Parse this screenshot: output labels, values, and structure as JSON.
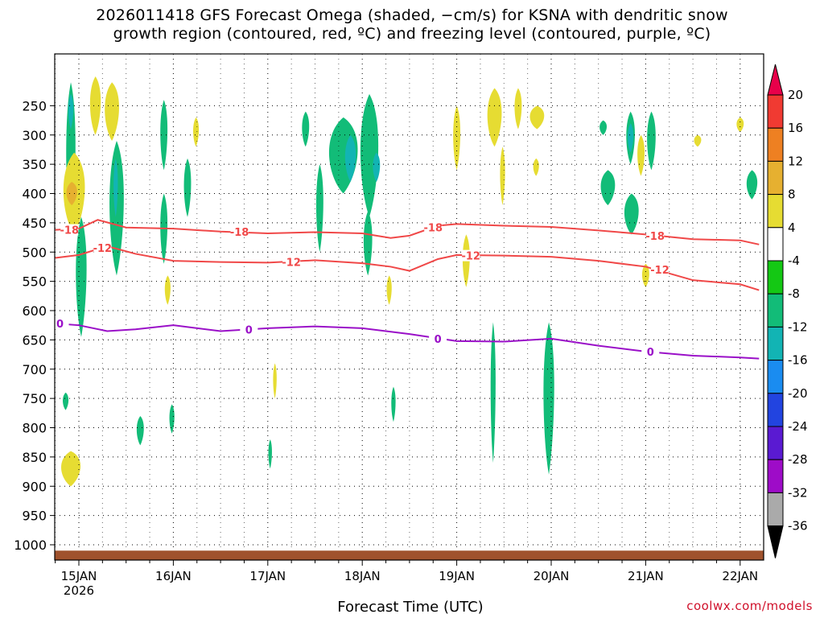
{
  "title": {
    "line1": "2026011418 GFS Forecast Omega (shaded, −cm/s) for KSNA with dendritic snow",
    "line2": "growth region (contoured, red, ºC) and freezing level (contoured, purple, ºC)"
  },
  "credit": "coolwx.com/models",
  "chart_data": {
    "type": "heatmap",
    "xlabel": "Forecast Time (UTC)",
    "x_unit": "days from 2026-01-15 00Z",
    "x_range": [
      -0.25,
      7.2
    ],
    "x_ticks": [
      {
        "x": 0,
        "label": "15JAN",
        "sub": "2026"
      },
      {
        "x": 1,
        "label": "16JAN",
        "sub": ""
      },
      {
        "x": 2,
        "label": "17JAN",
        "sub": ""
      },
      {
        "x": 3,
        "label": "18JAN",
        "sub": ""
      },
      {
        "x": 4,
        "label": "19JAN",
        "sub": ""
      },
      {
        "x": 5,
        "label": "20JAN",
        "sub": ""
      },
      {
        "x": 6,
        "label": "21JAN",
        "sub": ""
      },
      {
        "x": 7,
        "label": "22JAN",
        "sub": ""
      }
    ],
    "y_unit": "hPa",
    "y_range": [
      1010,
      200
    ],
    "y_ticks": [
      250,
      300,
      350,
      400,
      450,
      500,
      550,
      600,
      650,
      700,
      750,
      800,
      850,
      900,
      950,
      1000
    ],
    "surface_pressure": 1010,
    "colorbar": {
      "levels": [
        20,
        16,
        12,
        8,
        4,
        -4,
        -8,
        -12,
        -16,
        -20,
        -24,
        -28,
        -32,
        -36
      ],
      "colors": [
        "#e8004a",
        "#f03a32",
        "#ee8022",
        "#e6b030",
        "#e6dc32",
        "#ffffff",
        "#14c814",
        "#12bc78",
        "#12b4b4",
        "#1a8cf0",
        "#2244e0",
        "#5a1ad2",
        "#9e0cc8",
        "#aaaaaa",
        "#000000"
      ]
    },
    "contours": [
      {
        "label": "-18",
        "color": "#f04848",
        "points": [
          [
            -0.25,
            462
          ],
          [
            0,
            460
          ],
          [
            0.2,
            445
          ],
          [
            0.5,
            458
          ],
          [
            1,
            460
          ],
          [
            1.5,
            465
          ],
          [
            2,
            468
          ],
          [
            2.5,
            466
          ],
          [
            3,
            468
          ],
          [
            3.3,
            476
          ],
          [
            3.5,
            472
          ],
          [
            3.8,
            455
          ],
          [
            4,
            452
          ],
          [
            4.5,
            455
          ],
          [
            5,
            457
          ],
          [
            5.5,
            463
          ],
          [
            6,
            470
          ],
          [
            6.5,
            478
          ],
          [
            7,
            480
          ],
          [
            7.2,
            487
          ]
        ]
      },
      {
        "label": "-12",
        "color": "#f04848",
        "points": [
          [
            -0.25,
            510
          ],
          [
            0,
            505
          ],
          [
            0.3,
            490
          ],
          [
            0.6,
            503
          ],
          [
            1,
            515
          ],
          [
            1.5,
            517
          ],
          [
            2,
            518
          ],
          [
            2.5,
            514
          ],
          [
            3,
            519
          ],
          [
            3.3,
            525
          ],
          [
            3.5,
            532
          ],
          [
            3.8,
            512
          ],
          [
            4,
            505
          ],
          [
            4.5,
            506
          ],
          [
            5,
            508
          ],
          [
            5.5,
            515
          ],
          [
            6,
            525
          ],
          [
            6.5,
            548
          ],
          [
            7,
            555
          ],
          [
            7.2,
            565
          ]
        ]
      },
      {
        "label": "0",
        "color": "#9a10c8",
        "points": [
          [
            -0.25,
            622
          ],
          [
            0,
            625
          ],
          [
            0.3,
            635
          ],
          [
            0.6,
            632
          ],
          [
            1,
            625
          ],
          [
            1.5,
            635
          ],
          [
            2,
            630
          ],
          [
            2.5,
            627
          ],
          [
            3,
            630
          ],
          [
            3.5,
            640
          ],
          [
            4,
            652
          ],
          [
            4.5,
            653
          ],
          [
            5,
            648
          ],
          [
            5.5,
            660
          ],
          [
            6,
            670
          ],
          [
            6.5,
            677
          ],
          [
            7,
            680
          ],
          [
            7.2,
            682
          ]
        ]
      }
    ],
    "contour_labels": [
      {
        "text": "-18",
        "color": "#f04848",
        "x": -0.1,
        "y": 462
      },
      {
        "text": "-18",
        "color": "#f04848",
        "x": 1.7,
        "y": 465
      },
      {
        "text": "-18",
        "color": "#f04848",
        "x": 3.75,
        "y": 458
      },
      {
        "text": "-18",
        "color": "#f04848",
        "x": 6.1,
        "y": 472
      },
      {
        "text": "-12",
        "color": "#f04848",
        "x": 0.25,
        "y": 493
      },
      {
        "text": "-12",
        "color": "#f04848",
        "x": 2.25,
        "y": 517
      },
      {
        "text": "-12",
        "color": "#f04848",
        "x": 4.15,
        "y": 506
      },
      {
        "text": "-12",
        "color": "#f04848",
        "x": 6.15,
        "y": 530
      },
      {
        "text": "0",
        "color": "#9a10c8",
        "x": -0.2,
        "y": 622
      },
      {
        "text": "0",
        "color": "#9a10c8",
        "x": 1.8,
        "y": 632
      },
      {
        "text": "0",
        "color": "#9a10c8",
        "x": 3.8,
        "y": 648
      },
      {
        "text": "0",
        "color": "#9a10c8",
        "x": 6.05,
        "y": 670
      }
    ],
    "omega_patches": [
      {
        "x": -0.15,
        "x2": -0.02,
        "p_top": 210,
        "p_bot": 470,
        "level": -8
      },
      {
        "x": -0.12,
        "x2": -0.05,
        "p_top": 230,
        "p_bot": 290,
        "level": -12
      },
      {
        "x": 0.1,
        "x2": 0.25,
        "p_top": 200,
        "p_bot": 300,
        "level": 4
      },
      {
        "x": -0.2,
        "x2": 0.1,
        "p_top": 330,
        "p_bot": 470,
        "level": 4
      },
      {
        "x": -0.15,
        "x2": 0.0,
        "p_top": 380,
        "p_bot": 420,
        "level": 8
      },
      {
        "x": 0.25,
        "x2": 0.45,
        "p_top": 210,
        "p_bot": 310,
        "level": 4
      },
      {
        "x": 0.3,
        "x2": 0.5,
        "p_top": 310,
        "p_bot": 540,
        "level": -8
      },
      {
        "x": 0.36,
        "x2": 0.42,
        "p_top": 340,
        "p_bot": 440,
        "level": -12
      },
      {
        "x": -0.05,
        "x2": 0.1,
        "p_top": 440,
        "p_bot": 645,
        "level": -8
      },
      {
        "x": -0.22,
        "x2": 0.05,
        "p_top": 840,
        "p_bot": 900,
        "level": 4
      },
      {
        "x": -0.18,
        "x2": -0.1,
        "p_top": 740,
        "p_bot": 770,
        "level": -8
      },
      {
        "x": 0.6,
        "x2": 0.7,
        "p_top": 780,
        "p_bot": 830,
        "level": -8
      },
      {
        "x": 0.85,
        "x2": 0.95,
        "p_top": 240,
        "p_bot": 360,
        "level": -8
      },
      {
        "x": 0.85,
        "x2": 0.95,
        "p_top": 400,
        "p_bot": 520,
        "level": -8
      },
      {
        "x": 0.9,
        "x2": 0.98,
        "p_top": 540,
        "p_bot": 590,
        "level": 4
      },
      {
        "x": 1.1,
        "x2": 1.2,
        "p_top": 340,
        "p_bot": 440,
        "level": -8
      },
      {
        "x": 1.2,
        "x2": 1.28,
        "p_top": 270,
        "p_bot": 320,
        "level": 4
      },
      {
        "x": 0.95,
        "x2": 1.02,
        "p_top": 760,
        "p_bot": 810,
        "level": -8
      },
      {
        "x": 2.05,
        "x2": 2.1,
        "p_top": 690,
        "p_bot": 750,
        "level": 4
      },
      {
        "x": 2.0,
        "x2": 2.05,
        "p_top": 820,
        "p_bot": 870,
        "level": -8
      },
      {
        "x": 2.35,
        "x2": 2.45,
        "p_top": 260,
        "p_bot": 320,
        "level": -8
      },
      {
        "x": 2.5,
        "x2": 2.6,
        "p_top": 350,
        "p_bot": 500,
        "level": -8
      },
      {
        "x": 2.6,
        "x2": 3.0,
        "p_top": 270,
        "p_bot": 400,
        "level": -8
      },
      {
        "x": 2.8,
        "x2": 2.95,
        "p_top": 300,
        "p_bot": 380,
        "level": -12
      },
      {
        "x": 2.95,
        "x2": 3.2,
        "p_top": 230,
        "p_bot": 440,
        "level": -8
      },
      {
        "x": 3.1,
        "x2": 3.2,
        "p_top": 330,
        "p_bot": 380,
        "level": -12
      },
      {
        "x": 3.0,
        "x2": 3.12,
        "p_top": 430,
        "p_bot": 540,
        "level": -8
      },
      {
        "x": 3.25,
        "x2": 3.32,
        "p_top": 540,
        "p_bot": 590,
        "level": 4
      },
      {
        "x": 3.3,
        "x2": 3.36,
        "p_top": 730,
        "p_bot": 790,
        "level": -8
      },
      {
        "x": 3.95,
        "x2": 4.05,
        "p_top": 250,
        "p_bot": 360,
        "level": 4
      },
      {
        "x": 4.05,
        "x2": 4.15,
        "p_top": 470,
        "p_bot": 560,
        "level": 4
      },
      {
        "x": 4.3,
        "x2": 4.5,
        "p_top": 220,
        "p_bot": 320,
        "level": 4
      },
      {
        "x": 4.6,
        "x2": 4.7,
        "p_top": 220,
        "p_bot": 290,
        "level": 4
      },
      {
        "x": 4.75,
        "x2": 4.95,
        "p_top": 250,
        "p_bot": 290,
        "level": 4
      },
      {
        "x": 4.45,
        "x2": 4.52,
        "p_top": 320,
        "p_bot": 420,
        "level": 4
      },
      {
        "x": 4.8,
        "x2": 4.88,
        "p_top": 340,
        "p_bot": 370,
        "level": 4
      },
      {
        "x": 4.35,
        "x2": 4.42,
        "p_top": 620,
        "p_bot": 860,
        "level": -8
      },
      {
        "x": 4.9,
        "x2": 5.05,
        "p_top": 620,
        "p_bot": 880,
        "level": -8
      },
      {
        "x": 5.5,
        "x2": 5.6,
        "p_top": 275,
        "p_bot": 300,
        "level": -8
      },
      {
        "x": 5.78,
        "x2": 5.9,
        "p_top": 260,
        "p_bot": 350,
        "level": -8
      },
      {
        "x": 5.8,
        "x2": 5.88,
        "p_top": 280,
        "p_bot": 330,
        "level": -12
      },
      {
        "x": 5.9,
        "x2": 6.0,
        "p_top": 300,
        "p_bot": 370,
        "level": 4
      },
      {
        "x": 6.0,
        "x2": 6.12,
        "p_top": 260,
        "p_bot": 360,
        "level": -8
      },
      {
        "x": 5.5,
        "x2": 5.7,
        "p_top": 360,
        "p_bot": 420,
        "level": -8
      },
      {
        "x": 5.75,
        "x2": 5.95,
        "p_top": 400,
        "p_bot": 470,
        "level": -8
      },
      {
        "x": 5.95,
        "x2": 6.05,
        "p_top": 520,
        "p_bot": 560,
        "level": 4
      },
      {
        "x": 6.5,
        "x2": 6.6,
        "p_top": 300,
        "p_bot": 320,
        "level": 4
      },
      {
        "x": 6.95,
        "x2": 7.05,
        "p_top": 270,
        "p_bot": 295,
        "level": 4
      },
      {
        "x": 7.05,
        "x2": 7.2,
        "p_top": 360,
        "p_bot": 410,
        "level": -8
      }
    ]
  }
}
